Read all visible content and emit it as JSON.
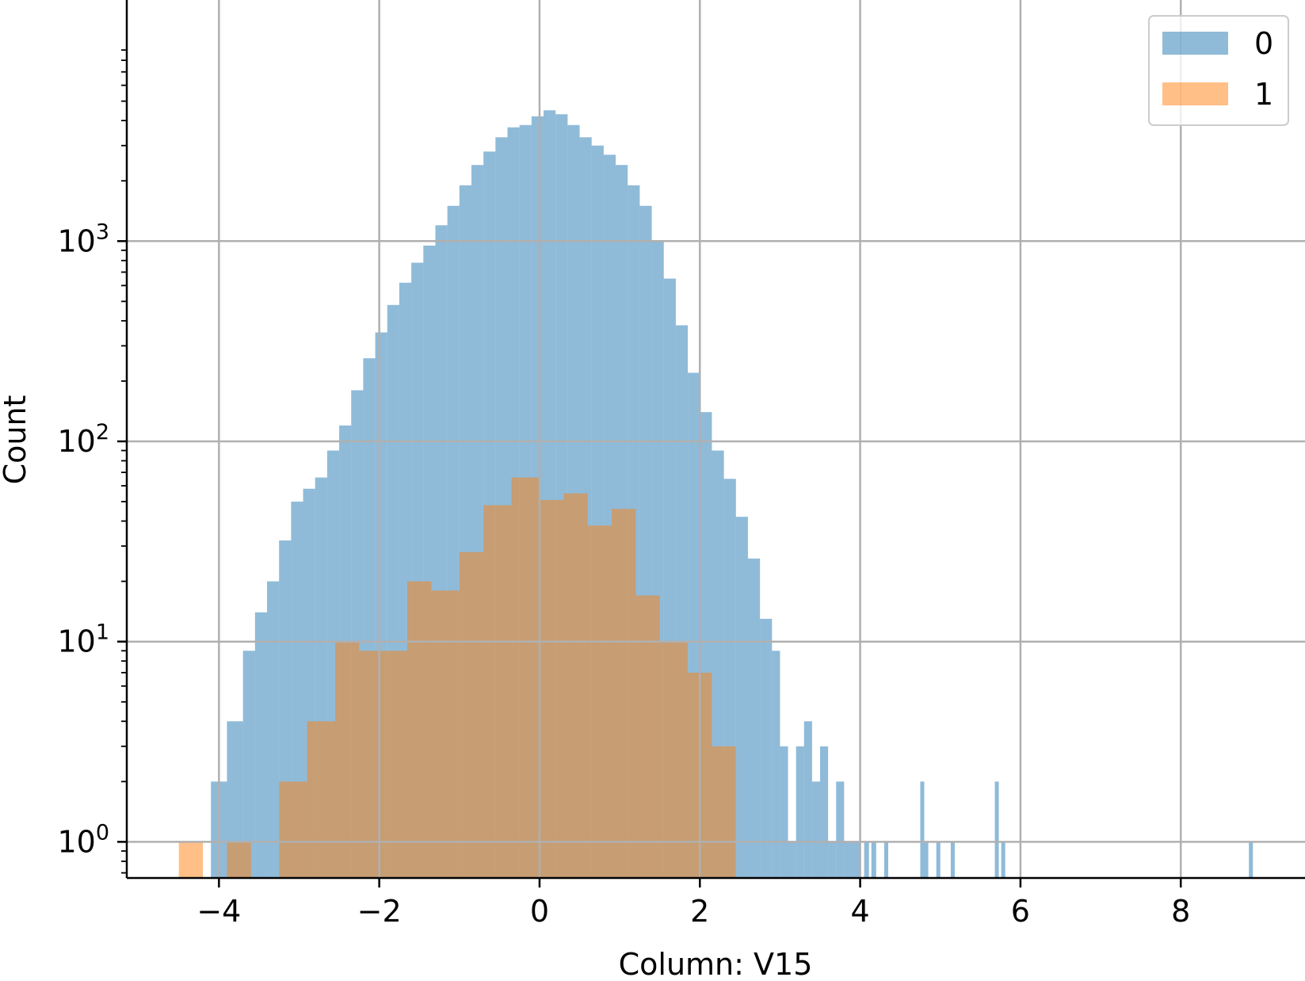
{
  "chart_data": {
    "type": "bar",
    "subtype": "histogram",
    "xlabel": "Column: V15",
    "ylabel": "Count",
    "y_scale": "log",
    "xlim": [
      -5.15,
      9.55
    ],
    "ylim": [
      0.66,
      16000
    ],
    "x_ticks": [
      -4,
      -2,
      0,
      2,
      4,
      6,
      8
    ],
    "x_tick_labels": [
      "−4",
      "−2",
      "0",
      "2",
      "4",
      "6",
      "8"
    ],
    "y_ticks": [
      1,
      10,
      100,
      1000
    ],
    "y_tick_labels": [
      {
        "base": "10",
        "exp": "0"
      },
      {
        "base": "10",
        "exp": "1"
      },
      {
        "base": "10",
        "exp": "2"
      },
      {
        "base": "10",
        "exp": "3"
      }
    ],
    "grid": true,
    "legend_position": "top-right",
    "colors": {
      "series_0": "#1f77b4",
      "series_1": "#ff7f0e"
    },
    "series": [
      {
        "name": "0",
        "color": "#1f77b4",
        "bins": [
          {
            "x0": -4.1,
            "x1": -3.9,
            "count": 2
          },
          {
            "x0": -3.9,
            "x1": -3.7,
            "count": 4
          },
          {
            "x0": -3.7,
            "x1": -3.55,
            "count": 9
          },
          {
            "x0": -3.55,
            "x1": -3.4,
            "count": 14
          },
          {
            "x0": -3.4,
            "x1": -3.25,
            "count": 20
          },
          {
            "x0": -3.25,
            "x1": -3.1,
            "count": 32
          },
          {
            "x0": -3.1,
            "x1": -2.95,
            "count": 50
          },
          {
            "x0": -2.95,
            "x1": -2.8,
            "count": 58
          },
          {
            "x0": -2.8,
            "x1": -2.65,
            "count": 66
          },
          {
            "x0": -2.65,
            "x1": -2.5,
            "count": 90
          },
          {
            "x0": -2.5,
            "x1": -2.35,
            "count": 120
          },
          {
            "x0": -2.35,
            "x1": -2.2,
            "count": 180
          },
          {
            "x0": -2.2,
            "x1": -2.05,
            "count": 260
          },
          {
            "x0": -2.05,
            "x1": -1.9,
            "count": 350
          },
          {
            "x0": -1.9,
            "x1": -1.75,
            "count": 480
          },
          {
            "x0": -1.75,
            "x1": -1.6,
            "count": 620
          },
          {
            "x0": -1.6,
            "x1": -1.45,
            "count": 780
          },
          {
            "x0": -1.45,
            "x1": -1.3,
            "count": 950
          },
          {
            "x0": -1.3,
            "x1": -1.15,
            "count": 1200
          },
          {
            "x0": -1.15,
            "x1": -1.0,
            "count": 1500
          },
          {
            "x0": -1.0,
            "x1": -0.85,
            "count": 1900
          },
          {
            "x0": -0.85,
            "x1": -0.7,
            "count": 2400
          },
          {
            "x0": -0.7,
            "x1": -0.55,
            "count": 2800
          },
          {
            "x0": -0.55,
            "x1": -0.4,
            "count": 3300
          },
          {
            "x0": -0.4,
            "x1": -0.25,
            "count": 3700
          },
          {
            "x0": -0.25,
            "x1": -0.1,
            "count": 3800
          },
          {
            "x0": -0.1,
            "x1": 0.05,
            "count": 4200
          },
          {
            "x0": 0.05,
            "x1": 0.2,
            "count": 4500
          },
          {
            "x0": 0.2,
            "x1": 0.35,
            "count": 4300
          },
          {
            "x0": 0.35,
            "x1": 0.5,
            "count": 3800
          },
          {
            "x0": 0.5,
            "x1": 0.65,
            "count": 3300
          },
          {
            "x0": 0.65,
            "x1": 0.8,
            "count": 3000
          },
          {
            "x0": 0.8,
            "x1": 0.95,
            "count": 2700
          },
          {
            "x0": 0.95,
            "x1": 1.1,
            "count": 2400
          },
          {
            "x0": 1.1,
            "x1": 1.25,
            "count": 1900
          },
          {
            "x0": 1.25,
            "x1": 1.4,
            "count": 1500
          },
          {
            "x0": 1.4,
            "x1": 1.55,
            "count": 1000
          },
          {
            "x0": 1.55,
            "x1": 1.7,
            "count": 650
          },
          {
            "x0": 1.7,
            "x1": 1.85,
            "count": 380
          },
          {
            "x0": 1.85,
            "x1": 2.0,
            "count": 220
          },
          {
            "x0": 2.0,
            "x1": 2.15,
            "count": 140
          },
          {
            "x0": 2.15,
            "x1": 2.3,
            "count": 90
          },
          {
            "x0": 2.3,
            "x1": 2.45,
            "count": 65
          },
          {
            "x0": 2.45,
            "x1": 2.6,
            "count": 42
          },
          {
            "x0": 2.6,
            "x1": 2.75,
            "count": 26
          },
          {
            "x0": 2.75,
            "x1": 2.9,
            "count": 13
          },
          {
            "x0": 2.9,
            "x1": 3.0,
            "count": 9
          },
          {
            "x0": 3.0,
            "x1": 3.1,
            "count": 3
          },
          {
            "x0": 3.1,
            "x1": 3.2,
            "count": 1
          },
          {
            "x0": 3.2,
            "x1": 3.3,
            "count": 3
          },
          {
            "x0": 3.3,
            "x1": 3.4,
            "count": 4
          },
          {
            "x0": 3.4,
            "x1": 3.5,
            "count": 2
          },
          {
            "x0": 3.5,
            "x1": 3.6,
            "count": 3
          },
          {
            "x0": 3.6,
            "x1": 3.7,
            "count": 1
          },
          {
            "x0": 3.7,
            "x1": 3.8,
            "count": 2
          },
          {
            "x0": 3.8,
            "x1": 3.9,
            "count": 1
          },
          {
            "x0": 3.9,
            "x1": 4.0,
            "count": 1
          },
          {
            "x0": 4.05,
            "x1": 4.11,
            "count": 1
          },
          {
            "x0": 4.14,
            "x1": 4.2,
            "count": 1
          },
          {
            "x0": 4.3,
            "x1": 4.35,
            "count": 1
          },
          {
            "x0": 4.75,
            "x1": 4.8,
            "count": 2
          },
          {
            "x0": 4.8,
            "x1": 4.85,
            "count": 1
          },
          {
            "x0": 4.95,
            "x1": 5.0,
            "count": 1
          },
          {
            "x0": 5.13,
            "x1": 5.18,
            "count": 1
          },
          {
            "x0": 5.68,
            "x1": 5.73,
            "count": 2
          },
          {
            "x0": 5.76,
            "x1": 5.81,
            "count": 1
          },
          {
            "x0": 8.85,
            "x1": 8.9,
            "count": 1
          }
        ]
      },
      {
        "name": "1",
        "color": "#ff7f0e",
        "bins": [
          {
            "x0": -4.5,
            "x1": -4.2,
            "count": 1
          },
          {
            "x0": -3.9,
            "x1": -3.6,
            "count": 1
          },
          {
            "x0": -3.25,
            "x1": -2.9,
            "count": 2
          },
          {
            "x0": -2.9,
            "x1": -2.55,
            "count": 4
          },
          {
            "x0": -2.55,
            "x1": -2.25,
            "count": 10
          },
          {
            "x0": -2.25,
            "x1": -1.65,
            "count": 9
          },
          {
            "x0": -1.65,
            "x1": -1.35,
            "count": 20
          },
          {
            "x0": -1.35,
            "x1": -1.0,
            "count": 18
          },
          {
            "x0": -1.0,
            "x1": -0.7,
            "count": 28
          },
          {
            "x0": -0.7,
            "x1": -0.35,
            "count": 48
          },
          {
            "x0": -0.35,
            "x1": 0.0,
            "count": 66
          },
          {
            "x0": 0.0,
            "x1": 0.3,
            "count": 51
          },
          {
            "x0": 0.3,
            "x1": 0.6,
            "count": 55
          },
          {
            "x0": 0.6,
            "x1": 0.9,
            "count": 38
          },
          {
            "x0": 0.9,
            "x1": 1.2,
            "count": 46
          },
          {
            "x0": 1.2,
            "x1": 1.5,
            "count": 17
          },
          {
            "x0": 1.5,
            "x1": 1.85,
            "count": 10
          },
          {
            "x0": 1.85,
            "x1": 2.15,
            "count": 7
          },
          {
            "x0": 2.15,
            "x1": 2.45,
            "count": 3
          }
        ]
      }
    ]
  }
}
